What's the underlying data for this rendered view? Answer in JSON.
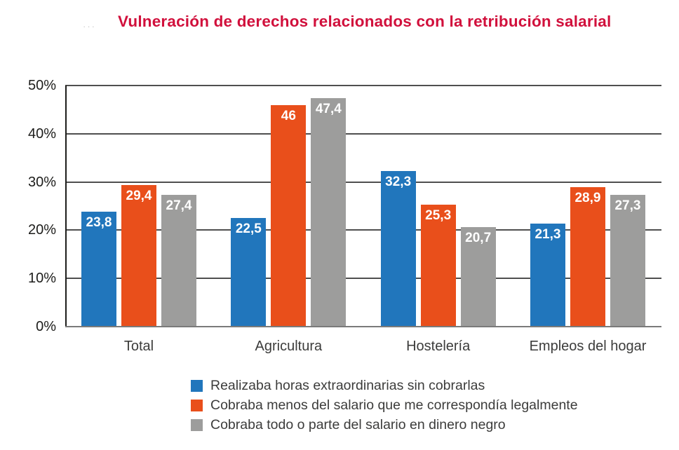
{
  "decor": {
    "faint_marks": "···"
  },
  "title": {
    "text": "Vulneración de derechos relacionados con la retribución salarial",
    "color": "#d1103c"
  },
  "colors": {
    "grid": "#4f4f4f",
    "axis": "#1d1d1b",
    "bottom_axis": "#7a7a7a",
    "tick_text": "#1d1d1b",
    "category_text": "#3c3c3b",
    "bar_label_text": "#ffffff"
  },
  "chart_data": {
    "type": "bar",
    "title": "Vulneración de derechos relacionados con la retribución salarial",
    "categories": [
      "Total",
      "Agricultura",
      "Hostelería",
      "Empleos del hogar"
    ],
    "series": [
      {
        "name": "Realizaba horas extraordinarias sin cobrarlas",
        "color": "#2176bc",
        "values": [
          23.8,
          22.5,
          32.3,
          21.3
        ],
        "labels": [
          "23,8",
          "22,5",
          "32,3",
          "21,3"
        ]
      },
      {
        "name": "Cobraba menos del salario que me correspondía legalmente",
        "color": "#e94f1b",
        "values": [
          29.4,
          46,
          25.3,
          28.9
        ],
        "labels": [
          "29,4",
          "46",
          "25,3",
          "28,9"
        ]
      },
      {
        "name": "Cobraba todo o parte del salario en dinero negro",
        "color": "#9d9d9c",
        "values": [
          27.4,
          47.4,
          20.7,
          27.3
        ],
        "labels": [
          "27,4",
          "47,4",
          "20,7",
          "27,3"
        ]
      }
    ],
    "xlabel": "",
    "ylabel": "",
    "ylim": [
      0,
      50
    ],
    "yticks": [
      "0%",
      "10%",
      "20%",
      "30%",
      "40%",
      "50%"
    ],
    "grid": true,
    "legend_position": "bottom-left"
  }
}
